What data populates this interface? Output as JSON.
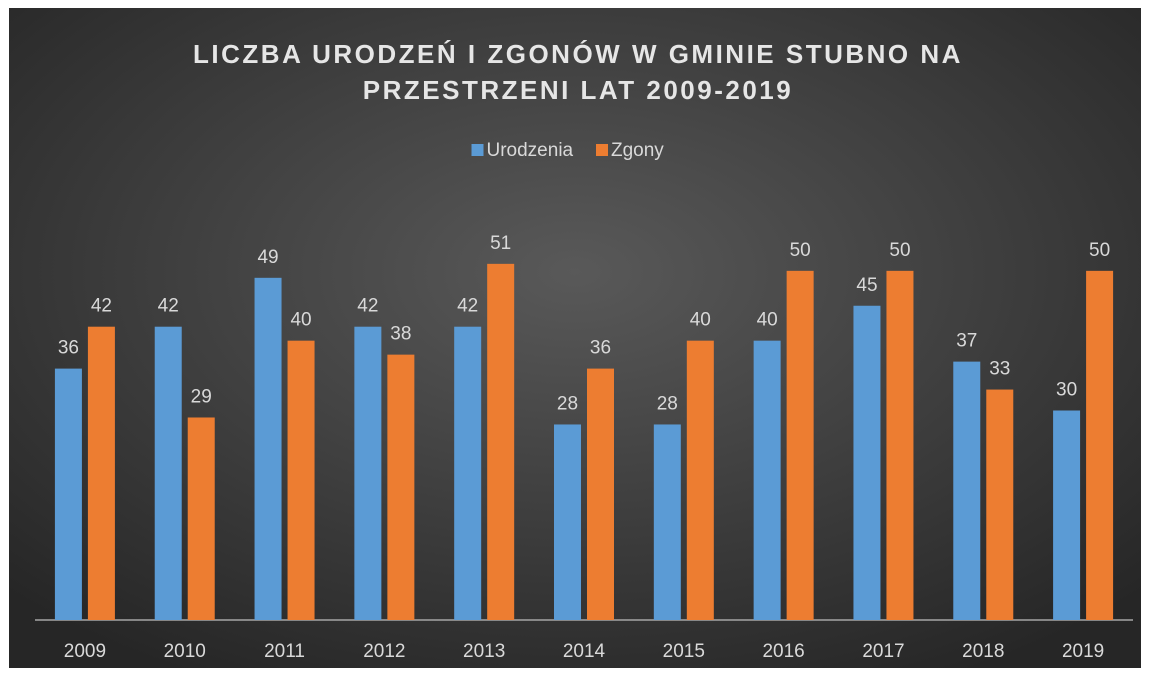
{
  "chart_data": {
    "type": "bar",
    "title": [
      "LICZBA URODZEŃ I ZGONÓW W GMINIE STUBNO NA",
      "PRZESTRZENI LAT 2009-2019"
    ],
    "categories": [
      "2009",
      "2010",
      "2011",
      "2012",
      "2013",
      "2014",
      "2015",
      "2016",
      "2017",
      "2018",
      "2019"
    ],
    "series": [
      {
        "name": "Urodzenia",
        "color": "#5b9bd5",
        "values": [
          36,
          42,
          49,
          42,
          42,
          28,
          28,
          40,
          45,
          37,
          30
        ]
      },
      {
        "name": "Zgony",
        "color": "#ed7d31",
        "values": [
          42,
          29,
          40,
          38,
          51,
          36,
          40,
          50,
          50,
          33,
          50
        ]
      }
    ],
    "ylim": [
      0,
      60
    ],
    "legend": "top"
  }
}
